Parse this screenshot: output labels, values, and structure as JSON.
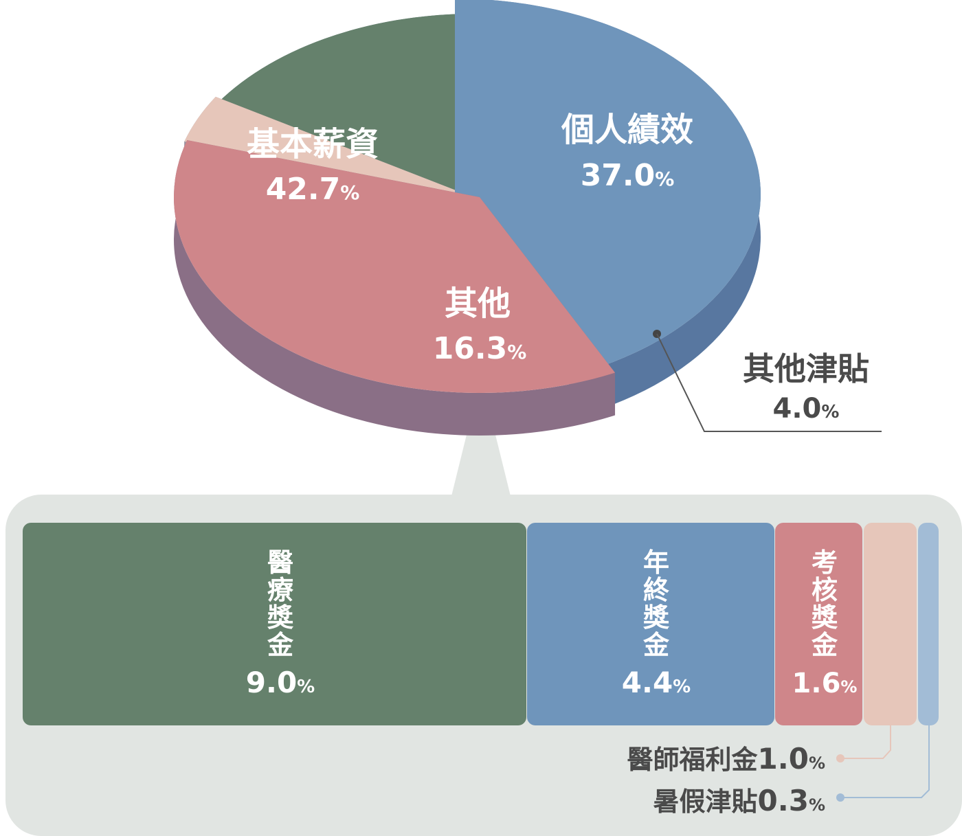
{
  "chart_data": [
    {
      "type": "pie",
      "slices": [
        {
          "label": "基本薪資",
          "value": 42.7,
          "value_text": "42.7",
          "unit": "%",
          "color": "#6f95bb",
          "side_color": "#5877a0"
        },
        {
          "label": "個人績效",
          "value": 37.0,
          "value_text": "37.0",
          "unit": "%",
          "color": "#cf868a",
          "side_color": "#8a6f86"
        },
        {
          "label": "其他津貼",
          "value": 4.0,
          "value_text": "4.0",
          "unit": "%",
          "color": "#e6c6ba",
          "side_color": "#9a94a2"
        },
        {
          "label": "其他",
          "value": 16.3,
          "value_text": "16.3",
          "unit": "%",
          "color": "#65816c",
          "side_color": "#526e79"
        }
      ]
    },
    {
      "type": "bar",
      "stacked": true,
      "orientation": "horizontal",
      "parent": "其他",
      "segments": [
        {
          "label": "醫療獎金",
          "value": 9.0,
          "value_text": "9.0",
          "unit": "%",
          "color": "#65816c"
        },
        {
          "label": "年終獎金",
          "value": 4.4,
          "value_text": "4.4",
          "unit": "%",
          "color": "#6f95bb"
        },
        {
          "label": "考核獎金",
          "value": 1.6,
          "value_text": "1.6",
          "unit": "%",
          "color": "#cf868a"
        },
        {
          "label": "醫師福利金",
          "value": 1.0,
          "value_text": "1.0",
          "unit": "%",
          "color": "#e6c6ba"
        },
        {
          "label": "暑假津貼",
          "value": 0.3,
          "value_text": "0.3",
          "unit": "%",
          "color": "#a2bcd6"
        }
      ]
    }
  ],
  "colors": {
    "panel_bg": "#e1e5e2",
    "label_dark": "#4a4a4a",
    "leader_line": "#555555"
  }
}
